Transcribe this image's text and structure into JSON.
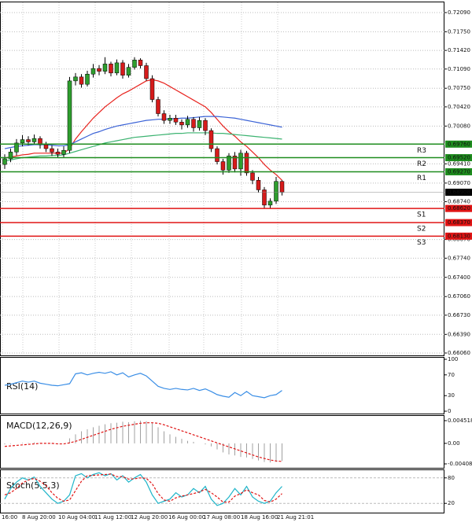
{
  "chart_data": [
    {
      "type": "candlestick",
      "ylim": [
        0.66018,
        0.72271
      ],
      "yticks": [
        {
          "value": 0.7209,
          "label": "0.72090"
        },
        {
          "value": 0.7175,
          "label": "0.71750"
        },
        {
          "value": 0.7142,
          "label": "0.71420"
        },
        {
          "value": 0.7109,
          "label": "0.71090"
        },
        {
          "value": 0.7075,
          "label": "0.70750"
        },
        {
          "value": 0.7042,
          "label": "0.70420"
        },
        {
          "value": 0.7008,
          "label": "0.70080"
        },
        {
          "value": 0.6941,
          "label": "0.69410"
        },
        {
          "value": 0.6907,
          "label": "0.69070"
        },
        {
          "value": 0.6874,
          "label": "0.68740"
        },
        {
          "value": 0.6807,
          "label": "0.68070"
        },
        {
          "value": 0.6774,
          "label": "0.67740"
        },
        {
          "value": 0.674,
          "label": "0.67400"
        },
        {
          "value": 0.6706,
          "label": "0.67060"
        },
        {
          "value": 0.6673,
          "label": "0.66730"
        },
        {
          "value": 0.6639,
          "label": "0.66390"
        },
        {
          "value": 0.6606,
          "label": "0.66060"
        }
      ],
      "grid": true,
      "up_color": "#2e9e2e",
      "down_color": "#d61b1b",
      "ohlc": [
        [
          0.694,
          0.6958,
          0.6932,
          0.695
        ],
        [
          0.695,
          0.6968,
          0.6944,
          0.6962
        ],
        [
          0.6962,
          0.6985,
          0.6956,
          0.6978
        ],
        [
          0.6978,
          0.6992,
          0.6972,
          0.6984
        ],
        [
          0.6984,
          0.699,
          0.6974,
          0.698
        ],
        [
          0.698,
          0.6993,
          0.6975,
          0.6986
        ],
        [
          0.6986,
          0.699,
          0.6968,
          0.6975
        ],
        [
          0.6975,
          0.698,
          0.6962,
          0.6968
        ],
        [
          0.6968,
          0.6974,
          0.6955,
          0.6962
        ],
        [
          0.6962,
          0.6968,
          0.6952,
          0.6958
        ],
        [
          0.6958,
          0.6972,
          0.6953,
          0.6965
        ],
        [
          0.6965,
          0.7095,
          0.696,
          0.7088
        ],
        [
          0.7088,
          0.7102,
          0.708,
          0.7095
        ],
        [
          0.7095,
          0.71,
          0.7076,
          0.7082
        ],
        [
          0.7082,
          0.7106,
          0.7078,
          0.71
        ],
        [
          0.71,
          0.7118,
          0.7094,
          0.711
        ],
        [
          0.711,
          0.7116,
          0.7098,
          0.7105
        ],
        [
          0.7105,
          0.713,
          0.71,
          0.7118
        ],
        [
          0.7118,
          0.7122,
          0.7096,
          0.7102
        ],
        [
          0.7102,
          0.7126,
          0.7098,
          0.712
        ],
        [
          0.712,
          0.7125,
          0.7092,
          0.7098
        ],
        [
          0.7098,
          0.7118,
          0.7094,
          0.7112
        ],
        [
          0.7112,
          0.713,
          0.7108,
          0.7125
        ],
        [
          0.7125,
          0.7128,
          0.711,
          0.7115
        ],
        [
          0.7115,
          0.712,
          0.7088,
          0.7092
        ],
        [
          0.7092,
          0.7098,
          0.705,
          0.7055
        ],
        [
          0.7055,
          0.706,
          0.7025,
          0.703
        ],
        [
          0.703,
          0.7036,
          0.7012,
          0.7018
        ],
        [
          0.7018,
          0.7028,
          0.7012,
          0.7022
        ],
        [
          0.7022,
          0.7028,
          0.701,
          0.7015
        ],
        [
          0.7015,
          0.702,
          0.7002,
          0.701
        ],
        [
          0.701,
          0.7026,
          0.7005,
          0.702
        ],
        [
          0.702,
          0.7024,
          0.6998,
          0.7005
        ],
        [
          0.7005,
          0.7024,
          0.7,
          0.7018
        ],
        [
          0.7018,
          0.7022,
          0.6992,
          0.7
        ],
        [
          0.7,
          0.7004,
          0.6962,
          0.6968
        ],
        [
          0.6968,
          0.6972,
          0.694,
          0.6945
        ],
        [
          0.6945,
          0.695,
          0.6922,
          0.693
        ],
        [
          0.693,
          0.696,
          0.6925,
          0.6955
        ],
        [
          0.6955,
          0.6962,
          0.6926,
          0.6932
        ],
        [
          0.6932,
          0.6966,
          0.692,
          0.696
        ],
        [
          0.696,
          0.6964,
          0.692,
          0.6925
        ],
        [
          0.6925,
          0.693,
          0.6905,
          0.6912
        ],
        [
          0.6912,
          0.6918,
          0.689,
          0.6895
        ],
        [
          0.6895,
          0.69,
          0.6862,
          0.6868
        ],
        [
          0.6868,
          0.688,
          0.6862,
          0.6875
        ],
        [
          0.6875,
          0.6918,
          0.687,
          0.691
        ],
        [
          0.691,
          0.6912,
          0.6885,
          0.68908
        ]
      ],
      "series": [
        {
          "color": "#e8231e",
          "values": [
            0.6952,
            0.6953,
            0.6955,
            0.6957,
            0.6958,
            0.696,
            0.696,
            0.696,
            0.696,
            0.696,
            0.696,
            0.6968,
            0.6985,
            0.6998,
            0.701,
            0.7022,
            0.7032,
            0.7042,
            0.705,
            0.7058,
            0.7065,
            0.707,
            0.7076,
            0.7082,
            0.7088,
            0.709,
            0.7088,
            0.7084,
            0.7078,
            0.7072,
            0.7066,
            0.706,
            0.7054,
            0.7048,
            0.7042,
            0.7032,
            0.702,
            0.7008,
            0.6998,
            0.699,
            0.698,
            0.6972,
            0.6962,
            0.6952,
            0.694,
            0.693,
            0.6922,
            0.6912
          ]
        },
        {
          "color": "#3a62d6",
          "values": [
            0.6968,
            0.697,
            0.6972,
            0.6973,
            0.6974,
            0.6975,
            0.6975,
            0.6975,
            0.6974,
            0.6973,
            0.6973,
            0.6975,
            0.698,
            0.6985,
            0.699,
            0.6995,
            0.6998,
            0.7002,
            0.7005,
            0.7008,
            0.701,
            0.7012,
            0.7014,
            0.7016,
            0.7018,
            0.7019,
            0.702,
            0.702,
            0.7021,
            0.7021,
            0.7022,
            0.7022,
            0.7023,
            0.7024,
            0.7025,
            0.7025,
            0.7025,
            0.7024,
            0.7023,
            0.7022,
            0.702,
            0.7018,
            0.7016,
            0.7014,
            0.7012,
            0.701,
            0.7008,
            0.7006
          ]
        },
        {
          "color": "#3cb371",
          "values": [
            0.6946,
            0.6948,
            0.695,
            0.6952,
            0.6953,
            0.6954,
            0.6955,
            0.6955,
            0.6956,
            0.6956,
            0.6957,
            0.696,
            0.6963,
            0.6966,
            0.6969,
            0.6972,
            0.6975,
            0.6978,
            0.698,
            0.6982,
            0.6984,
            0.6986,
            0.6988,
            0.6989,
            0.699,
            0.6991,
            0.6992,
            0.6993,
            0.6994,
            0.6995,
            0.6995,
            0.6996,
            0.6996,
            0.6996,
            0.6996,
            0.6996,
            0.6995,
            0.6995,
            0.6994,
            0.6993,
            0.6992,
            0.6991,
            0.699,
            0.6989,
            0.6988,
            0.6987,
            0.6986,
            0.6985
          ]
        }
      ],
      "levels": [
        {
          "name": "R3",
          "value": 0.6976,
          "label": "0.69760",
          "color": "#1e8c1e"
        },
        {
          "name": "R2",
          "value": 0.6952,
          "label": "0.69520",
          "color": "#1e8c1e"
        },
        {
          "name": "R1",
          "value": 0.6927,
          "label": "0.69270",
          "color": "#1e8c1e"
        },
        {
          "name": "S1",
          "value": 0.6862,
          "label": "0.68620",
          "color": "#e01414"
        },
        {
          "name": "S2",
          "value": 0.6837,
          "label": "0.68370",
          "color": "#e01414"
        },
        {
          "name": "S3",
          "value": 0.6813,
          "label": "0.68130",
          "color": "#e01414"
        }
      ],
      "time_labels": [
        "16:00",
        "8 Aug 20:00",
        "10 Aug 04:00",
        "11 Aug 12:00",
        "12 Aug 20:00",
        "16 Aug 00:00",
        "17 Aug 08:00",
        "18 Aug 16:00",
        "21 Aug 21:01"
      ]
    },
    {
      "type": "line",
      "title": "RSI(14)",
      "ylim": [
        0,
        100
      ],
      "yticks": [
        100,
        70,
        30,
        0
      ],
      "series": [
        {
          "color": "#3a8ee6",
          "values": [
            50,
            52,
            55,
            58,
            56,
            58,
            54,
            52,
            50,
            49,
            51,
            53,
            72,
            74,
            70,
            73,
            75,
            73,
            76,
            70,
            74,
            66,
            70,
            73,
            68,
            58,
            48,
            44,
            42,
            44,
            42,
            41,
            44,
            40,
            43,
            38,
            32,
            29,
            27,
            36,
            30,
            38,
            30,
            28,
            26,
            30,
            32,
            40
          ]
        }
      ]
    },
    {
      "type": "macd",
      "title": "MACD(12,26,9)",
      "ylim": [
        -0.00408,
        0.004518
      ],
      "yticks": [
        0.004518,
        {
          "value": 0,
          "label": "0.00"
        },
        -0.00408
      ],
      "histogram": {
        "color": "#a0a0a0",
        "values": [
          -0.0002,
          -0.0001,
          0,
          0.0001,
          0.0001,
          0.0002,
          0.0001,
          0,
          -0.0001,
          -0.0001,
          0,
          0.001,
          0.0018,
          0.0024,
          0.0028,
          0.0032,
          0.0035,
          0.0038,
          0.004,
          0.0041,
          0.0043,
          0.0042,
          0.0044,
          0.0045,
          0.0044,
          0.004,
          0.0032,
          0.0024,
          0.0018,
          0.0013,
          0.0009,
          0.0005,
          0.0003,
          0,
          -0.0002,
          -0.0006,
          -0.0012,
          -0.0018,
          -0.0022,
          -0.0024,
          -0.0027,
          -0.0028,
          -0.0031,
          -0.0034,
          -0.0037,
          -0.0038,
          -0.0037,
          -0.0035
        ]
      },
      "signal": {
        "color": "#e01414",
        "values": [
          -0.0006,
          -0.0005,
          -0.0004,
          -0.0003,
          -0.0002,
          -0.0001,
          0,
          0,
          0,
          -0.0001,
          -0.0001,
          0.0001,
          0.0004,
          0.0008,
          0.0012,
          0.0016,
          0.002,
          0.0024,
          0.0028,
          0.0031,
          0.0034,
          0.0036,
          0.0038,
          0.004,
          0.0041,
          0.0041,
          0.004,
          0.0037,
          0.0033,
          0.0029,
          0.0025,
          0.0021,
          0.0017,
          0.0013,
          0.0009,
          0.0005,
          0.0001,
          -0.0003,
          -0.0007,
          -0.0011,
          -0.0015,
          -0.0019,
          -0.0023,
          -0.0027,
          -0.003,
          -0.0033,
          -0.0035,
          -0.0036
        ]
      }
    },
    {
      "type": "stochastic",
      "title": "Stoch(5,5,3)",
      "ylim": [
        0,
        100
      ],
      "yticks": [
        80,
        20
      ],
      "main": {
        "color": "#1fb5c9",
        "values": [
          30,
          55,
          70,
          80,
          75,
          82,
          60,
          45,
          30,
          20,
          25,
          40,
          85,
          90,
          80,
          88,
          92,
          85,
          90,
          75,
          85,
          70,
          80,
          88,
          70,
          40,
          20,
          25,
          30,
          45,
          35,
          40,
          55,
          45,
          60,
          30,
          15,
          20,
          35,
          55,
          40,
          60,
          35,
          25,
          20,
          25,
          45,
          60
        ]
      },
      "signal": {
        "color": "#e01414",
        "values": [
          40,
          45,
          55,
          68,
          75,
          79,
          72,
          62,
          45,
          32,
          25,
          28,
          50,
          72,
          85,
          86,
          87,
          88,
          89,
          83,
          83,
          77,
          78,
          80,
          79,
          66,
          43,
          28,
          25,
          33,
          37,
          40,
          43,
          47,
          53,
          45,
          35,
          23,
          23,
          37,
          43,
          52,
          45,
          40,
          27,
          23,
          30,
          43
        ]
      }
    }
  ]
}
